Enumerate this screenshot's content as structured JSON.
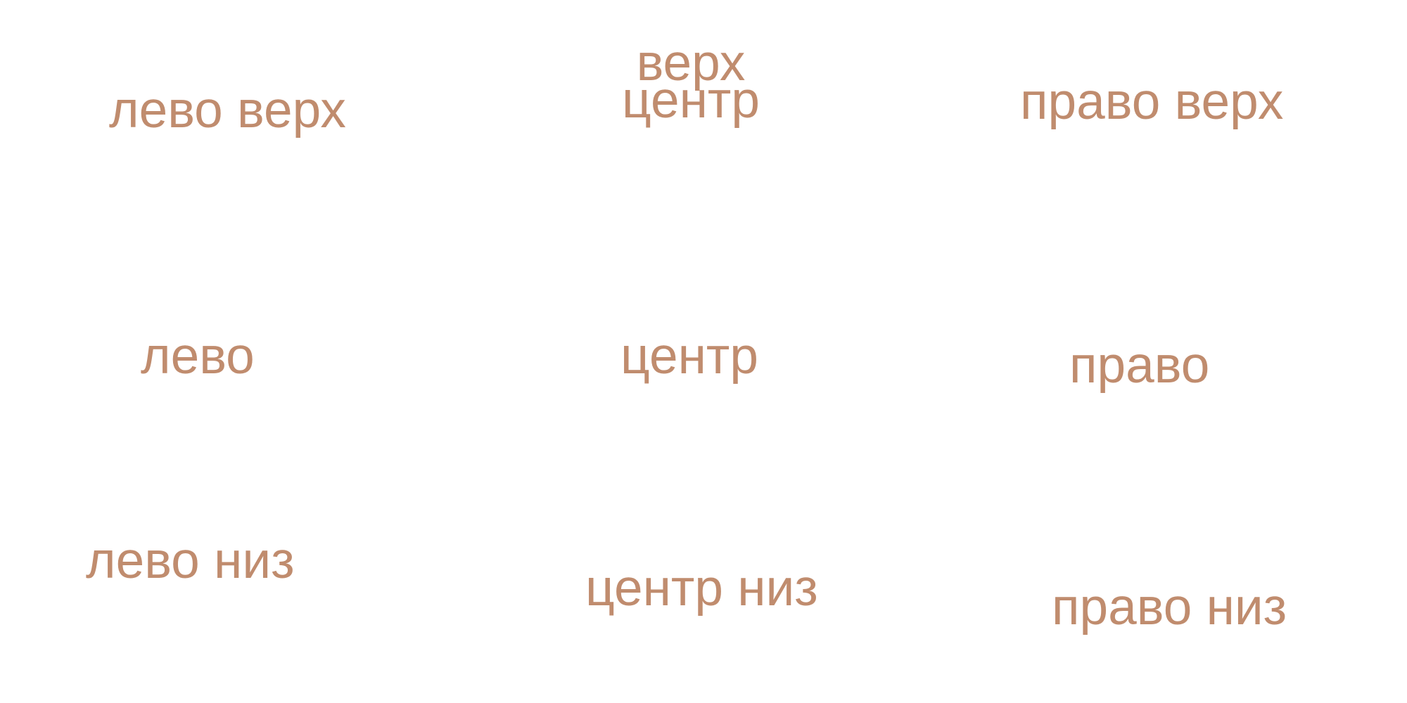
{
  "colors": {
    "text": "#c08c6e",
    "background": "#ffffff"
  },
  "labels": {
    "left_top": "лево верх",
    "center_top_upper": "верх",
    "center_top_lower": "центр",
    "right_top": "право верх",
    "left": "лево",
    "center": "центр",
    "right": "право",
    "left_bottom": "лево низ",
    "center_bottom": "центр низ",
    "right_bottom": "право низ"
  }
}
